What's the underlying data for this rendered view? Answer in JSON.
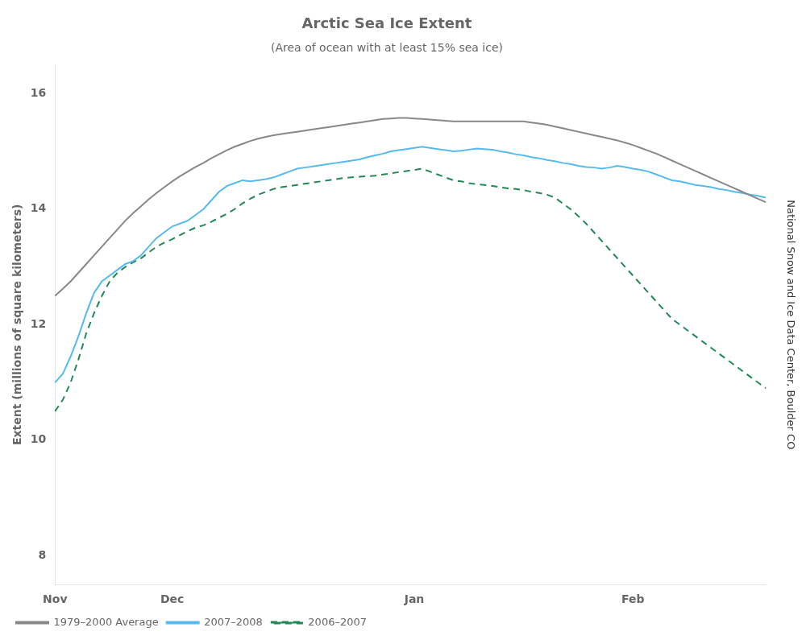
{
  "chart_data": {
    "type": "line",
    "title": "Arctic Sea Ice Extent",
    "subtitle": "(Area of ocean with at least 15% sea ice)",
    "ylabel": "Extent (millions of square kilometers)",
    "annotations": [
      "National Snow and Ice Data Center, Boulder CO"
    ],
    "categories": [
      "Nov",
      null,
      null,
      null,
      null,
      null,
      null,
      null,
      null,
      null,
      null,
      null,
      null,
      null,
      null,
      "Dec",
      null,
      null,
      null,
      null,
      null,
      null,
      null,
      null,
      null,
      null,
      null,
      null,
      null,
      null,
      null,
      null,
      null,
      null,
      null,
      null,
      null,
      null,
      null,
      null,
      null,
      null,
      null,
      null,
      null,
      null,
      "Jan",
      null,
      null,
      null,
      null,
      null,
      null,
      null,
      null,
      null,
      null,
      null,
      null,
      null,
      null,
      null,
      null,
      null,
      null,
      null,
      null,
      null,
      null,
      null,
      null,
      null,
      null,
      null,
      "Feb",
      null,
      null,
      null,
      null,
      null,
      null,
      null,
      null,
      null,
      null,
      null,
      null,
      null,
      null,
      null,
      null,
      null
    ],
    "series": [
      {
        "name": "1979–2000 Average",
        "color": "#888888",
        "line_style": "solid",
        "values": [
          12.5,
          12.62,
          12.75,
          12.9,
          13.05,
          13.2,
          13.35,
          13.5,
          13.65,
          13.8,
          13.93,
          14.05,
          14.17,
          14.28,
          14.38,
          14.48,
          14.57,
          14.65,
          14.73,
          14.8,
          14.88,
          14.95,
          15.02,
          15.08,
          15.13,
          15.18,
          15.22,
          15.25,
          15.28,
          15.3,
          15.32,
          15.34,
          15.36,
          15.38,
          15.4,
          15.42,
          15.44,
          15.46,
          15.48,
          15.5,
          15.52,
          15.54,
          15.56,
          15.57,
          15.58,
          15.58,
          15.57,
          15.56,
          15.55,
          15.54,
          15.53,
          15.52,
          15.52,
          15.52,
          15.52,
          15.52,
          15.52,
          15.52,
          15.52,
          15.52,
          15.52,
          15.5,
          15.48,
          15.46,
          15.43,
          15.4,
          15.37,
          15.34,
          15.31,
          15.28,
          15.25,
          15.22,
          15.19,
          15.15,
          15.11,
          15.06,
          15.01,
          14.96,
          14.9,
          14.84,
          14.78,
          14.72,
          14.66,
          14.6,
          14.54,
          14.48,
          14.42,
          14.36,
          14.3,
          14.24,
          14.18,
          14.12
        ]
      },
      {
        "name": "2007–2008",
        "color": "#55BBEE",
        "line_style": "solid",
        "values": [
          11.0,
          11.15,
          11.45,
          11.8,
          12.2,
          12.55,
          12.75,
          12.85,
          12.95,
          13.05,
          13.1,
          13.2,
          13.35,
          13.5,
          13.6,
          13.7,
          13.75,
          13.8,
          13.9,
          14.0,
          14.15,
          14.3,
          14.4,
          14.45,
          14.5,
          14.48,
          14.5,
          14.52,
          14.55,
          14.6,
          14.65,
          14.7,
          14.72,
          14.74,
          14.76,
          14.78,
          14.8,
          14.82,
          14.84,
          14.86,
          14.9,
          14.93,
          14.96,
          15.0,
          15.02,
          15.04,
          15.06,
          15.08,
          15.06,
          15.04,
          15.02,
          15.0,
          15.01,
          15.03,
          15.05,
          15.04,
          15.03,
          15.0,
          14.98,
          14.95,
          14.93,
          14.9,
          14.88,
          14.85,
          14.83,
          14.8,
          14.78,
          14.75,
          14.73,
          14.72,
          14.7,
          14.72,
          14.75,
          14.73,
          14.7,
          14.68,
          14.65,
          14.6,
          14.55,
          14.5,
          14.48,
          14.45,
          14.42,
          14.4,
          14.38,
          14.35,
          14.33,
          14.3,
          14.28,
          14.25,
          14.23,
          14.2
        ]
      },
      {
        "name": "2006–2007",
        "color": "#228855",
        "line_style": "dashed",
        "values": [
          10.5,
          10.7,
          11.0,
          11.4,
          11.85,
          12.2,
          12.5,
          12.75,
          12.9,
          13.0,
          13.08,
          13.15,
          13.25,
          13.35,
          13.42,
          13.48,
          13.55,
          13.62,
          13.68,
          13.72,
          13.78,
          13.85,
          13.92,
          14.0,
          14.1,
          14.18,
          14.25,
          14.3,
          14.35,
          14.38,
          14.4,
          14.42,
          14.44,
          14.46,
          14.48,
          14.5,
          14.52,
          14.54,
          14.55,
          14.56,
          14.57,
          14.58,
          14.6,
          14.62,
          14.64,
          14.66,
          14.68,
          14.7,
          14.65,
          14.6,
          14.55,
          14.5,
          14.48,
          14.45,
          14.43,
          14.42,
          14.4,
          14.38,
          14.36,
          14.35,
          14.33,
          14.3,
          14.28,
          14.25,
          14.2,
          14.1,
          14.0,
          13.88,
          13.75,
          13.6,
          13.45,
          13.3,
          13.15,
          13.0,
          12.85,
          12.7,
          12.55,
          12.4,
          12.25,
          12.1,
          12.0,
          11.9,
          11.8,
          11.7,
          11.6,
          11.5,
          11.4,
          11.3,
          11.2,
          11.1,
          11.0,
          10.9
        ]
      }
    ],
    "ylim": [
      7.5,
      16.5
    ],
    "yticks": [
      8,
      10,
      12,
      14,
      16
    ],
    "grid": false,
    "legend": "lower left"
  }
}
